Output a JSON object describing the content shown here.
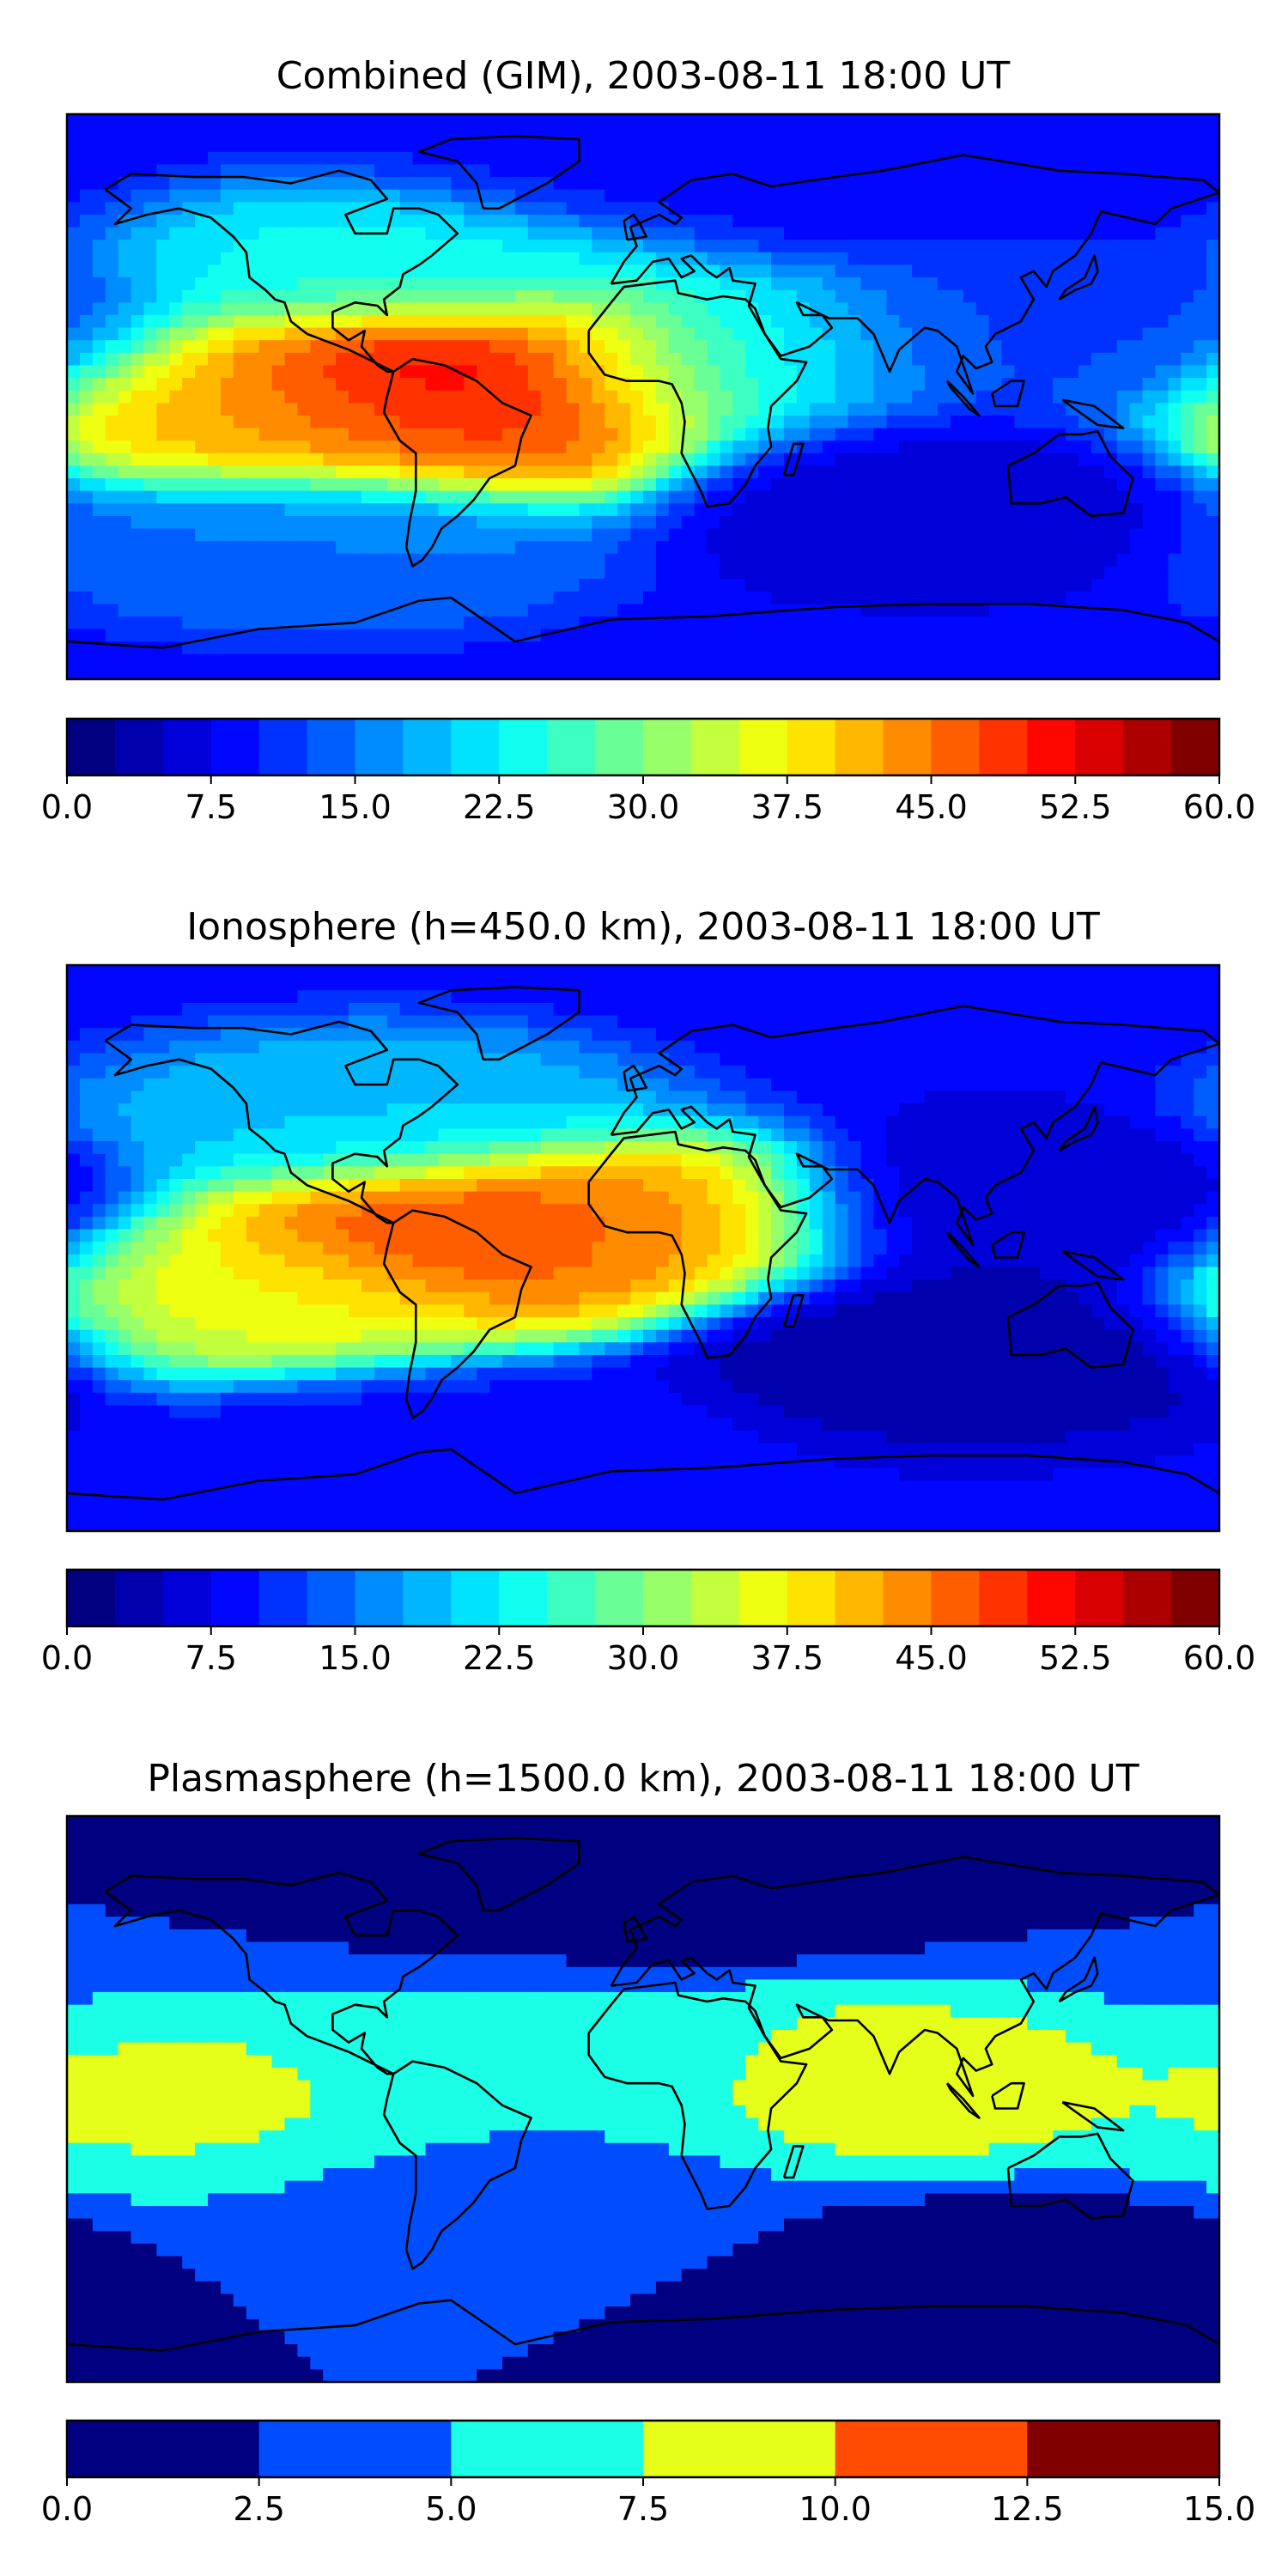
{
  "chart_data": [
    {
      "type": "heatmap",
      "title": "Combined (GIM), 2003-08-11 18:00 UT",
      "colorbar": {
        "range": [
          0,
          60
        ],
        "ticks": [
          "0.0",
          "7.5",
          "15.0",
          "22.5",
          "30.0",
          "37.5",
          "45.0",
          "52.5",
          "60.0"
        ],
        "levels": 24,
        "colormap": "jet"
      },
      "features": [
        {
          "feature": "equatorial anomaly peak over northern South America and tropical Atlantic",
          "lon": -50,
          "lat": 8,
          "value": 59
        },
        {
          "feature": "anomaly crest over eastern Pacific near the dayside equator",
          "lon": -120,
          "lat": -4,
          "value": 42
        },
        {
          "feature": "southern crest over South America",
          "lon": -60,
          "lat": -8,
          "value": 48
        },
        {
          "feature": "mid-latitude band over North America and Atlantic",
          "lon": -70,
          "lat": 40,
          "value": 24
        },
        {
          "feature": "Africa",
          "lon": 20,
          "lat": 10,
          "value": 22
        },
        {
          "feature": "southern Pacific / Atlantic mid-latitudes",
          "lon": -100,
          "lat": -45,
          "value": 15
        },
        {
          "feature": "Asia / western Pacific night side",
          "lon": 130,
          "lat": 15,
          "value": 12
        },
        {
          "feature": "southern Indian Ocean / Australia",
          "lon": 90,
          "lat": -30,
          "value": 6
        },
        {
          "feature": "high latitudes",
          "lon": 0,
          "lat": 75,
          "value": 9
        }
      ]
    },
    {
      "type": "heatmap",
      "title": "Ionosphere  (h=450.0 km), 2003-08-11 18:00 UT",
      "colorbar": {
        "range": [
          0,
          60
        ],
        "ticks": [
          "0.0",
          "7.5",
          "15.0",
          "22.5",
          "30.0",
          "37.5",
          "45.0",
          "52.5",
          "60.0"
        ],
        "levels": 24,
        "colormap": "jet"
      },
      "features": [
        {
          "feature": "equatorial anomaly peak over northern South America",
          "lon": -55,
          "lat": 6,
          "value": 53
        },
        {
          "feature": "crest over eastern Atlantic / West Africa coast",
          "lon": -15,
          "lat": 6,
          "value": 42
        },
        {
          "feature": "crest over eastern Pacific",
          "lon": -115,
          "lat": -12,
          "value": 37
        },
        {
          "feature": "mid-latitude band over North America",
          "lon": -85,
          "lat": 40,
          "value": 20
        },
        {
          "feature": "Asia / Pacific night side",
          "lon": 120,
          "lat": 10,
          "value": 5
        },
        {
          "feature": "southern Indian Ocean / Australia",
          "lon": 100,
          "lat": -30,
          "value": 3
        },
        {
          "feature": "southern high latitudes",
          "lon": -60,
          "lat": -65,
          "value": 9
        }
      ]
    },
    {
      "type": "heatmap",
      "title": "Plasmasphere (h=1500.0 km), 2003-08-11 18:00 UT",
      "colorbar": {
        "range": [
          0,
          15
        ],
        "ticks": [
          "0.0",
          "2.5",
          "5.0",
          "7.5",
          "10.0",
          "12.5",
          "15.0"
        ],
        "levels": 6,
        "colormap": "jet"
      },
      "features": [
        {
          "feature": "Africa / Indian Ocean / Southeast Asia low latitudes",
          "lon": 70,
          "lat": 5,
          "value": 8.5
        },
        {
          "feature": "eastern Pacific low latitudes",
          "lon": -130,
          "lat": 0,
          "value": 8.0
        },
        {
          "feature": "tropical band",
          "lon": -30,
          "lat": 10,
          "value": 6.0
        },
        {
          "feature": "South America and South Atlantic",
          "lon": -40,
          "lat": -30,
          "value": 4.0
        },
        {
          "feature": "northern high latitudes",
          "lon": 0,
          "lat": 70,
          "value": 1.5
        },
        {
          "feature": "southern high latitudes",
          "lon": 100,
          "lat": -60,
          "value": 1.5
        }
      ]
    }
  ]
}
